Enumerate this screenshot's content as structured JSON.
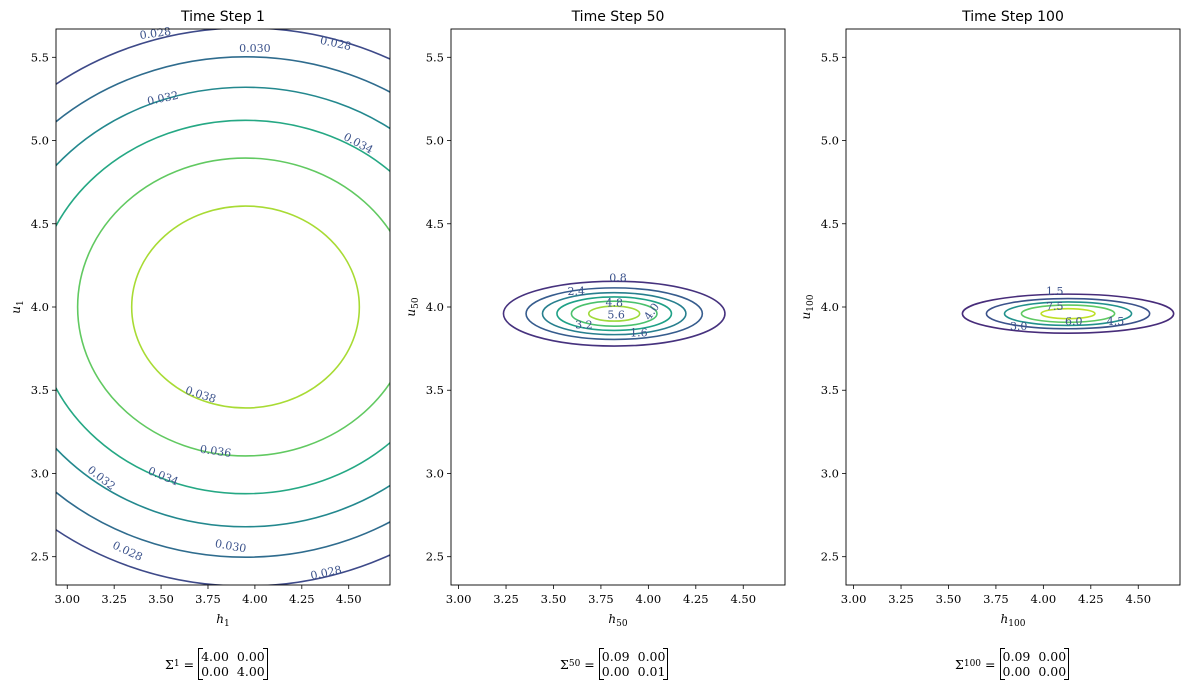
{
  "chart_data": [
    {
      "type": "contour",
      "title": "Time Step 1",
      "xlabel": "h",
      "xlabel_sub": "1",
      "ylabel": "u",
      "ylabel_sub": "1",
      "xlim": [
        2.94,
        4.72
      ],
      "ylim": [
        2.33,
        5.67
      ],
      "xticks": [
        "3.00",
        "3.25",
        "3.50",
        "3.75",
        "4.00",
        "4.25",
        "4.50"
      ],
      "xtick_values": [
        3.0,
        3.25,
        3.5,
        3.75,
        4.0,
        4.25,
        4.5
      ],
      "yticks": [
        "2.5",
        "3.0",
        "3.5",
        "4.0",
        "4.5",
        "5.0",
        "5.5"
      ],
      "ytick_values": [
        2.5,
        3.0,
        3.5,
        4.0,
        4.5,
        5.0,
        5.5
      ],
      "mean": [
        3.95,
        4.0
      ],
      "covariance": [
        [
          4.0,
          0.0
        ],
        [
          0.0,
          4.0
        ]
      ],
      "levels": [
        0.028,
        0.03,
        0.032,
        0.034,
        0.036,
        0.038
      ],
      "level_colors": [
        "#3e4a89",
        "#2f6c8e",
        "#23888e",
        "#25a884",
        "#61c961",
        "#a8db34"
      ],
      "contour_labels": [
        {
          "text": "0.028",
          "x": 3.47,
          "y": 5.64,
          "rot": -8
        },
        {
          "text": "0.028",
          "x": 4.43,
          "y": 5.58,
          "rot": 12
        },
        {
          "text": "0.030",
          "x": 4.0,
          "y": 5.55,
          "rot": 0
        },
        {
          "text": "0.032",
          "x": 3.51,
          "y": 5.25,
          "rot": -12
        },
        {
          "text": "0.034",
          "x": 4.55,
          "y": 4.98,
          "rot": 28
        },
        {
          "text": "0.038",
          "x": 3.71,
          "y": 3.47,
          "rot": 18
        },
        {
          "text": "0.036",
          "x": 3.79,
          "y": 3.13,
          "rot": 8
        },
        {
          "text": "0.034",
          "x": 3.51,
          "y": 2.98,
          "rot": 22
        },
        {
          "text": "0.032",
          "x": 3.18,
          "y": 2.97,
          "rot": 38
        },
        {
          "text": "0.030",
          "x": 3.87,
          "y": 2.56,
          "rot": 10
        },
        {
          "text": "0.028",
          "x": 3.32,
          "y": 2.53,
          "rot": 25
        },
        {
          "text": "0.028",
          "x": 4.38,
          "y": 2.4,
          "rot": -12
        }
      ],
      "caption": {
        "symbol": "Σ",
        "sub": "1",
        "matrix": [
          [
            "4.00",
            "0.00"
          ],
          [
            "0.00",
            "4.00"
          ]
        ]
      }
    },
    {
      "type": "contour",
      "title": "Time Step 50",
      "xlabel": "h",
      "xlabel_sub": "50",
      "ylabel": "u",
      "ylabel_sub": "50",
      "xlim": [
        2.96,
        4.72
      ],
      "ylim": [
        2.33,
        5.67
      ],
      "xticks": [
        "3.00",
        "3.25",
        "3.50",
        "3.75",
        "4.00",
        "4.25",
        "4.50"
      ],
      "xtick_values": [
        3.0,
        3.25,
        3.5,
        3.75,
        4.0,
        4.25,
        4.5
      ],
      "yticks": [
        "2.5",
        "3.0",
        "3.5",
        "4.0",
        "4.5",
        "5.0",
        "5.5"
      ],
      "ytick_values": [
        2.5,
        3.0,
        3.5,
        4.0,
        4.5,
        5.0,
        5.5
      ],
      "mean": [
        3.82,
        3.96
      ],
      "covariance": [
        [
          0.09,
          0.0
        ],
        [
          0.0,
          0.01
        ]
      ],
      "levels": [
        0.8,
        1.6,
        2.4,
        3.2,
        4.0,
        4.8,
        5.6
      ],
      "level_colors": [
        "#46327e",
        "#365c8d",
        "#277f8e",
        "#1fa187",
        "#4ac16d",
        "#9fda3a",
        "#e4e419"
      ],
      "contour_labels": [
        {
          "text": "0.8",
          "x": 3.84,
          "y": 4.17,
          "rot": 0
        },
        {
          "text": "2.4",
          "x": 3.62,
          "y": 4.09,
          "rot": 0
        },
        {
          "text": "4.8",
          "x": 3.82,
          "y": 4.02,
          "rot": 0
        },
        {
          "text": "5.6",
          "x": 3.83,
          "y": 3.95,
          "rot": 0
        },
        {
          "text": "4.0",
          "x": 4.02,
          "y": 3.97,
          "rot": -55
        },
        {
          "text": "3.2",
          "x": 3.66,
          "y": 3.89,
          "rot": 0
        },
        {
          "text": "1.6",
          "x": 3.95,
          "y": 3.84,
          "rot": 0
        }
      ],
      "caption": {
        "symbol": "Σ",
        "sub": "50",
        "matrix": [
          [
            "0.09",
            "0.00"
          ],
          [
            "0.00",
            "0.01"
          ]
        ]
      }
    },
    {
      "type": "contour",
      "title": "Time Step 100",
      "xlabel": "h",
      "xlabel_sub": "100",
      "ylabel": "u",
      "ylabel_sub": "100",
      "xlim": [
        2.96,
        4.72
      ],
      "ylim": [
        2.33,
        5.67
      ],
      "xticks": [
        "3.00",
        "3.25",
        "3.50",
        "3.75",
        "4.00",
        "4.25",
        "4.50"
      ],
      "xtick_values": [
        3.0,
        3.25,
        3.5,
        3.75,
        4.0,
        4.25,
        4.5
      ],
      "yticks": [
        "2.5",
        "3.0",
        "3.5",
        "4.0",
        "4.5",
        "5.0",
        "5.5"
      ],
      "ytick_values": [
        2.5,
        3.0,
        3.5,
        4.0,
        4.5,
        5.0,
        5.5
      ],
      "mean": [
        4.13,
        3.96
      ],
      "covariance": [
        [
          0.09,
          0.0
        ],
        [
          0.0,
          0.004
        ]
      ],
      "levels": [
        1.5,
        3.0,
        4.5,
        6.0,
        7.5
      ],
      "level_colors": [
        "#472c7a",
        "#3b528b",
        "#21918c",
        "#5ec962",
        "#bddf26"
      ],
      "contour_labels": [
        {
          "text": "1.5",
          "x": 4.06,
          "y": 4.09,
          "rot": 0
        },
        {
          "text": "7.5",
          "x": 4.06,
          "y": 4.0,
          "rot": 0
        },
        {
          "text": "6.0",
          "x": 4.16,
          "y": 3.91,
          "rot": 0
        },
        {
          "text": "4.5",
          "x": 4.38,
          "y": 3.91,
          "rot": 0
        },
        {
          "text": "3.0",
          "x": 3.87,
          "y": 3.88,
          "rot": 0
        }
      ],
      "caption": {
        "symbol": "Σ",
        "sub": "100",
        "matrix": [
          [
            "0.09",
            "0.00"
          ],
          [
            "0.00",
            "0.00"
          ]
        ]
      }
    }
  ]
}
